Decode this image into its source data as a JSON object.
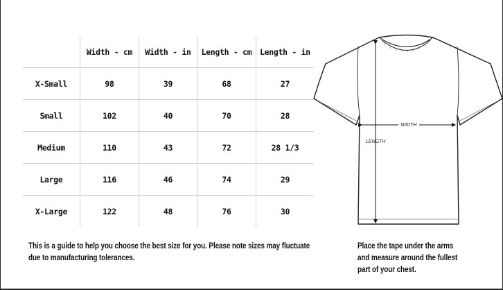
{
  "table": {
    "headers": [
      "",
      "Width - cm",
      "Width - in",
      "Length - cm",
      "Length - in"
    ],
    "rows": [
      {
        "size": "X-Small",
        "width_cm": "98",
        "width_in": "39",
        "length_cm": "68",
        "length_in": "27"
      },
      {
        "size": "Small",
        "width_cm": "102",
        "width_in": "40",
        "length_cm": "70",
        "length_in": "28"
      },
      {
        "size": "Medium",
        "width_cm": "110",
        "width_in": "43",
        "length_cm": "72",
        "length_in": "28 1/3"
      },
      {
        "size": "Large",
        "width_cm": "116",
        "width_in": "46",
        "length_cm": "74",
        "length_in": "29"
      },
      {
        "size": "X-Large",
        "width_cm": "122",
        "width_in": "48",
        "length_cm": "76",
        "length_in": "30"
      }
    ]
  },
  "notes": {
    "guide_line1": "This is a guide to help you choose the best size for you. Please note sizes may fluctuate",
    "guide_line2": "due to manufacturing tolerances.",
    "measure_line1": "Place the tape under the arms",
    "measure_line2": "and measure around the fullest",
    "measure_line3": "part of your chest."
  },
  "diagram": {
    "width_label": "WIDTH",
    "length_label": "LENGTH"
  }
}
